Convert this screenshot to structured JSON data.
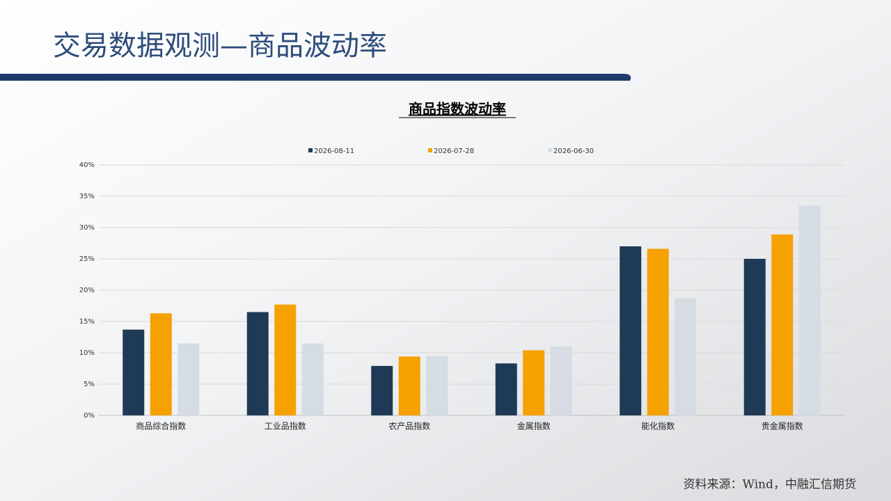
{
  "header": {
    "title": "交易数据观测—商品波动率"
  },
  "chart_data": {
    "type": "bar",
    "title": "商品指数波动率",
    "categories": [
      "商品综合指数",
      "工业品指数",
      "农产品指数",
      "金属指数",
      "能化指数",
      "贵金属指数"
    ],
    "series": [
      {
        "name": "2026-08-11",
        "color": "#1f3a56",
        "values": [
          13.7,
          16.5,
          7.9,
          8.3,
          27.0,
          25.0
        ]
      },
      {
        "name": "2026-07-28",
        "color": "#f5a100",
        "values": [
          16.3,
          17.7,
          9.4,
          10.4,
          26.6,
          28.9
        ]
      },
      {
        "name": "2026-06-30",
        "color": "#d6dce4",
        "values": [
          11.5,
          11.5,
          9.5,
          11.0,
          18.7,
          33.5
        ]
      }
    ],
    "ylim": [
      0,
      40
    ],
    "yticks": [
      {
        "value": 0,
        "label": "0%"
      },
      {
        "value": 5,
        "label": "5%"
      },
      {
        "value": 10,
        "label": "10%"
      },
      {
        "value": 15,
        "label": "15%"
      },
      {
        "value": 20,
        "label": "20%"
      },
      {
        "value": 25,
        "label": "25%"
      },
      {
        "value": 30,
        "label": "30%"
      },
      {
        "value": 35,
        "label": "35%"
      },
      {
        "value": 40,
        "label": "40%"
      }
    ],
    "grid": true,
    "legend": "top"
  },
  "footer": {
    "source": "资料来源：Wind，中融汇信期货"
  }
}
